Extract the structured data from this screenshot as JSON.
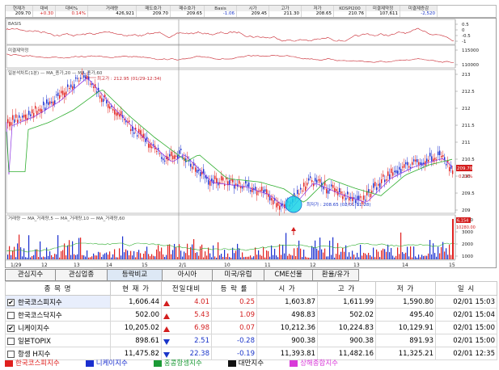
{
  "info_bar": {
    "columns": [
      {
        "label": "현재가",
        "value": "209.70",
        "color": "#000000"
      },
      {
        "label": "대비",
        "value": "+0.30",
        "color": "#d31e1e"
      },
      {
        "label": "대비%",
        "value": "0.14%",
        "color": "#d31e1e"
      },
      {
        "label": "거래량",
        "value": "426,921",
        "color": "#000000"
      },
      {
        "label": "매도호가",
        "value": "209.70",
        "color": "#000000"
      },
      {
        "label": "매수호가",
        "value": "209.65",
        "color": "#000000"
      },
      {
        "label": "Basis",
        "value": "-1.06",
        "color": "#1a35c9"
      },
      {
        "label": "시가",
        "value": "209.45",
        "color": "#000000"
      },
      {
        "label": "고가",
        "value": "211.30",
        "color": "#000000"
      },
      {
        "label": "저가",
        "value": "208.65",
        "color": "#000000"
      },
      {
        "label": "KOSPI200",
        "value": "210.76",
        "color": "#000000"
      },
      {
        "label": "미결제약정",
        "value": "107,611",
        "color": "#000000"
      },
      {
        "label": "미결제증감",
        "value": "-2,520",
        "color": "#1a35c9"
      }
    ]
  },
  "chart": {
    "basis_panel": {
      "title": "BASIS",
      "ticks": [
        "0.5",
        "0",
        "-0.5",
        "-1"
      ]
    },
    "oi_panel": {
      "title": "미결제약정",
      "ticks": [
        "115000",
        "110000"
      ]
    },
    "price_panel": {
      "title": "일분석차트(1분) — MA_종가,20 — MA_종가,60",
      "high_label": "최고가 : 212.95 (01/29-12:34)",
      "low_label": "최저가 : 208.65 (02/01-11:28)",
      "ticks": [
        "213",
        "212.5",
        "212",
        "211.5",
        "211",
        "210.5",
        "210",
        "209.5",
        "209"
      ],
      "last_price": "209.70",
      "last_pct": "0.14%"
    },
    "volume_panel": {
      "title": "거래량 — MA_거래량,5 — MA_거래량,10 — MA_거래량,60",
      "ticks": [
        "4000",
        "3000",
        "2000",
        "1000"
      ],
      "last_volume": "6,154",
      "last_volume_2": "10280.00"
    },
    "x_labels": [
      "1/29",
      "12",
      "13",
      "14",
      "15",
      "2/1",
      "10",
      "11",
      "12",
      "13",
      "14",
      "15"
    ]
  },
  "tabs": [
    {
      "label": "관심지수",
      "active": false
    },
    {
      "label": "관심업종",
      "active": false
    },
    {
      "label": "등락비교",
      "active": true
    },
    {
      "label": "아시아",
      "active": false
    },
    {
      "label": "미국/유럽",
      "active": false
    },
    {
      "label": "CME선물",
      "active": false
    },
    {
      "label": "환율/유가",
      "active": false
    }
  ],
  "table": {
    "headers": [
      "종 목 명",
      "현 재 가",
      "전일대비",
      "등 락 률",
      "시 가",
      "고 가",
      "저 가",
      "일 시"
    ],
    "rows": [
      {
        "checked": true,
        "name": "한국코스피지수",
        "price": "1,606.44",
        "dir": "up",
        "change": "4.01",
        "rate": "0.25",
        "open": "1,603.87",
        "high": "1,611.99",
        "low": "1,590.80",
        "time": "02/01 15:03"
      },
      {
        "checked": false,
        "name": "한국코스닥지수",
        "price": "502.00",
        "dir": "up",
        "change": "5.43",
        "rate": "1.09",
        "open": "498.83",
        "high": "502.02",
        "low": "495.40",
        "time": "02/01 15:04"
      },
      {
        "checked": true,
        "name": "니케이지수",
        "price": "10,205.02",
        "dir": "up",
        "change": "6.98",
        "rate": "0.07",
        "open": "10,212.36",
        "high": "10,224.83",
        "low": "10,129.91",
        "time": "02/01 15:00"
      },
      {
        "checked": false,
        "name": "일본TOPIX",
        "price": "898.61",
        "dir": "down",
        "change": "2.51",
        "rate": "-0.28",
        "open": "900.38",
        "high": "900.38",
        "low": "891.93",
        "time": "02/01 15:00"
      },
      {
        "checked": false,
        "name": "항셍 H지수",
        "price": "11,475.82",
        "dir": "down",
        "change": "22.38",
        "rate": "-0.19",
        "open": "11,393.81",
        "high": "11,482.16",
        "low": "11,325.21",
        "time": "02/01 12:35"
      }
    ]
  },
  "legend": [
    {
      "label": "한국코스피지수",
      "color": "#e0201e"
    },
    {
      "label": "니케이지수",
      "color": "#1a2fcf"
    },
    {
      "label": "홍콩항셍지수",
      "color": "#1a9a35"
    },
    {
      "label": "대만지수",
      "color": "#111111"
    },
    {
      "label": "상해종합지수",
      "color": "#d93ad9"
    }
  ]
}
